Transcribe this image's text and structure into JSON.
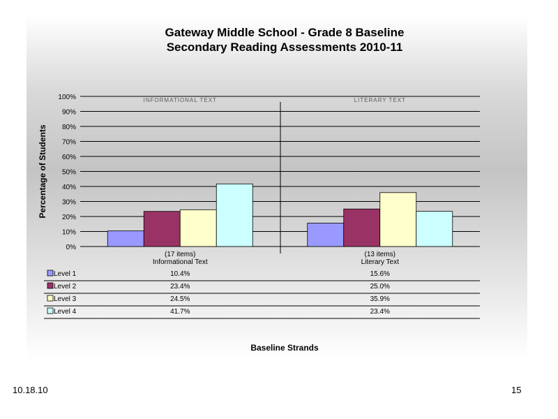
{
  "chart_data": {
    "type": "bar",
    "title": "Gateway Middle School - Grade 8 Baseline",
    "subtitle": "Secondary Reading Assessments 2010-11",
    "ylabel": "Percentage of Students",
    "xlabel": "Baseline Strands",
    "ylim": [
      0,
      100
    ],
    "yticks": [
      "0%",
      "10%",
      "20%",
      "30%",
      "40%",
      "50%",
      "60%",
      "70%",
      "80%",
      "90%",
      "100%"
    ],
    "grid": true,
    "categories": [
      {
        "items": "(17 items)",
        "name": "Informational Text",
        "panel_header": "INFORMATIONAL TEXT"
      },
      {
        "items": "(13 items)",
        "name": "Literary Text",
        "panel_header": "LITERARY TEXT"
      }
    ],
    "series": [
      {
        "name": "Level 1",
        "color": "#9999ff",
        "values": [
          10.4,
          15.6
        ],
        "labels": [
          "10.4%",
          "15.6%"
        ]
      },
      {
        "name": "Level 2",
        "color": "#993366",
        "values": [
          23.4,
          25.0
        ],
        "labels": [
          "23.4%",
          "25.0%"
        ]
      },
      {
        "name": "Level 3",
        "color": "#ffffcc",
        "values": [
          24.5,
          35.9
        ],
        "labels": [
          "24.5%",
          "35.9%"
        ]
      },
      {
        "name": "Level 4",
        "color": "#ccffff",
        "values": [
          41.7,
          23.4
        ],
        "labels": [
          "41.7%",
          "23.4%"
        ]
      }
    ]
  },
  "footer": {
    "date": "10.18.10",
    "page_number": "15"
  }
}
